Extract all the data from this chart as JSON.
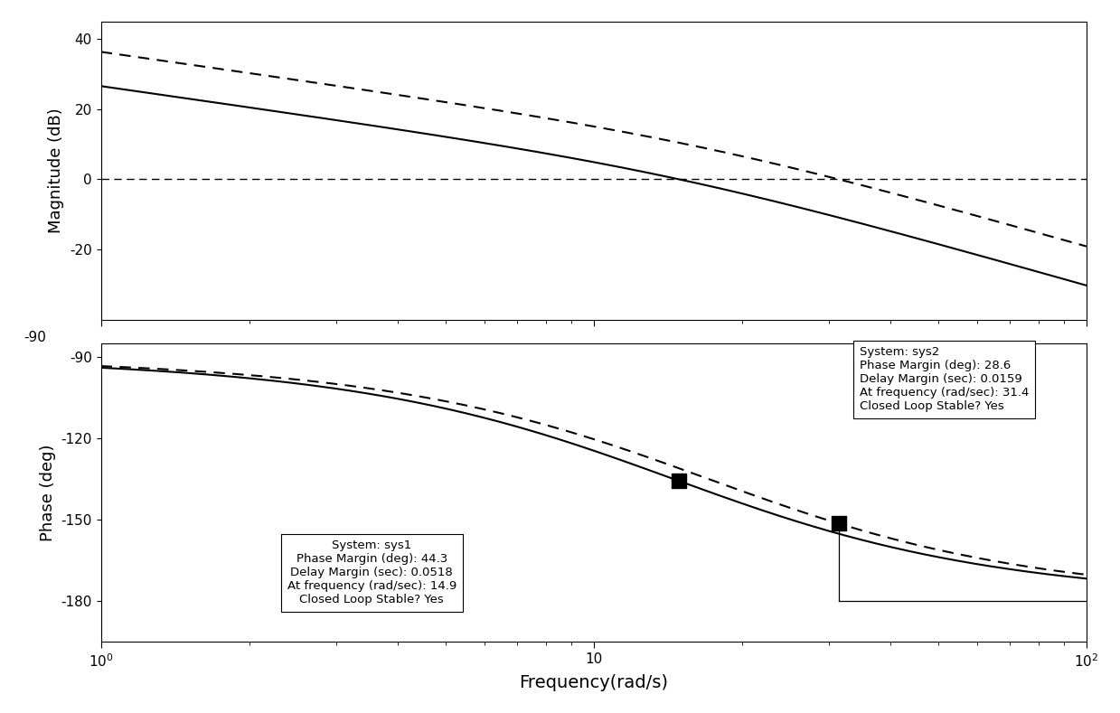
{
  "title": "",
  "xlabel": "Frequency(rad/s)",
  "ylabel_mag": "Magnitude (dB)",
  "ylabel_phase": "Phase (deg)",
  "freq_range": [
    1,
    100
  ],
  "mag_ylim": [
    -40,
    45
  ],
  "phase_ylim": [
    -195,
    -85
  ],
  "mag_yticks": [
    -20,
    0,
    20,
    40
  ],
  "phase_yticks": [
    -180,
    -150,
    -120,
    -90
  ],
  "sys1": {
    "label": "sys1",
    "pm_freq": 14.9,
    "pm_phase": -135.7,
    "pm_value": 44.3,
    "dm_value": 0.0518
  },
  "sys2": {
    "label": "sys2",
    "pm_freq": 31.4,
    "pm_phase": -151.4,
    "pm_value": 28.6,
    "dm_value": 0.0159
  },
  "annotation_sys1": {
    "text": "System: sys1\nPhase Margin (deg): 44.3\nDelay Margin (sec): 0.0518\nAt frequency (rad/sec): 14.9\nClosed Loop Stable? Yes"
  },
  "annotation_sys2": {
    "text": "System: sys2\nPhase Margin (deg): 28.6\nDelay Margin (sec): 0.0159\nAt frequency (rad/sec): 31.4\nClosed Loop Stable? Yes"
  },
  "line_color": "#000000",
  "line_color_dashed": "#555555",
  "bg_color": "#ffffff",
  "marker_color": "#000000",
  "annotation_fontsize": 9.5,
  "ylabel_fontsize": 13,
  "xlabel_fontsize": 14,
  "tick_fontsize": 11
}
